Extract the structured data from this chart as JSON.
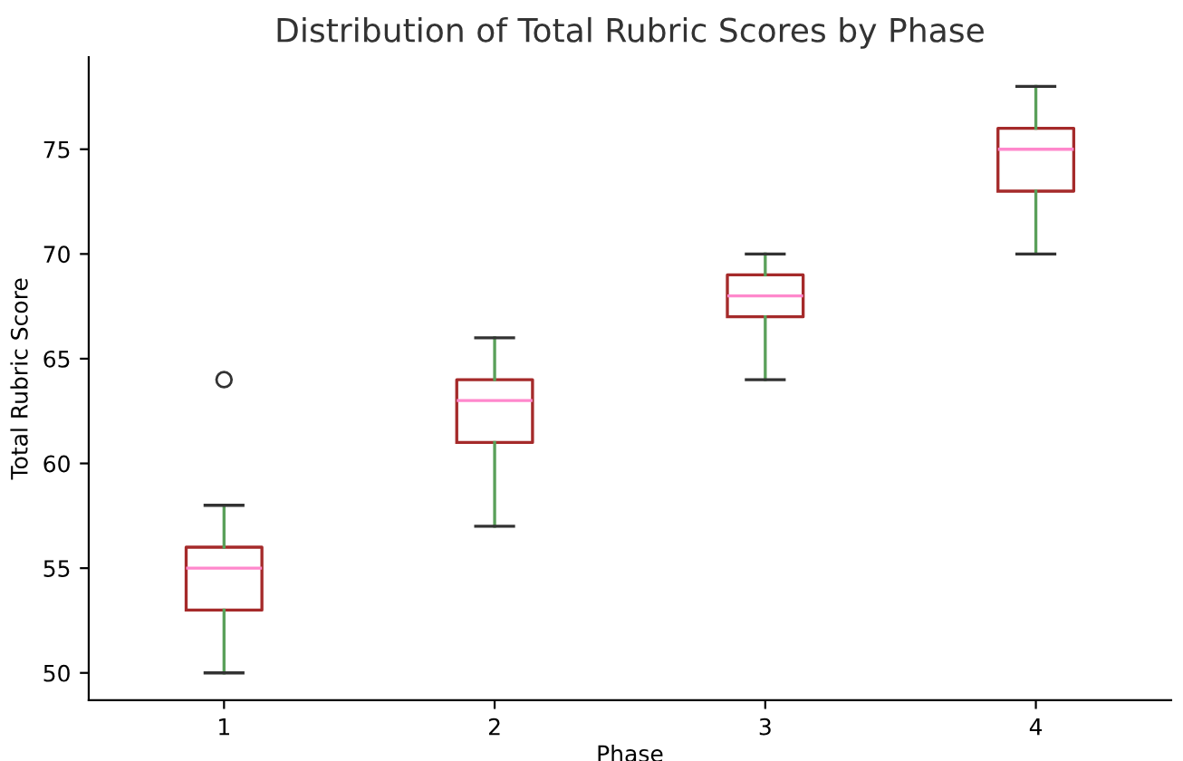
{
  "chart_data": {
    "type": "box",
    "title": "Distribution of Total Rubric Scores by Phase",
    "xlabel": "Phase",
    "ylabel": "Total Rubric Score",
    "categories": [
      "1",
      "2",
      "3",
      "4"
    ],
    "boxes": [
      {
        "low": 50,
        "q1": 53,
        "median": 55,
        "q3": 56,
        "high": 58,
        "outliers": [
          64
        ]
      },
      {
        "low": 57,
        "q1": 61,
        "median": 63,
        "q3": 64,
        "high": 66
      },
      {
        "low": 64,
        "q1": 67,
        "median": 68,
        "q3": 69,
        "high": 70
      },
      {
        "low": 70,
        "q1": 73,
        "median": 75,
        "q3": 76,
        "high": 78
      }
    ],
    "color": "#a52a2a",
    "ylim": [
      48.7,
      79.4
    ],
    "yticks": [
      50,
      55,
      60,
      65,
      70,
      75
    ]
  }
}
